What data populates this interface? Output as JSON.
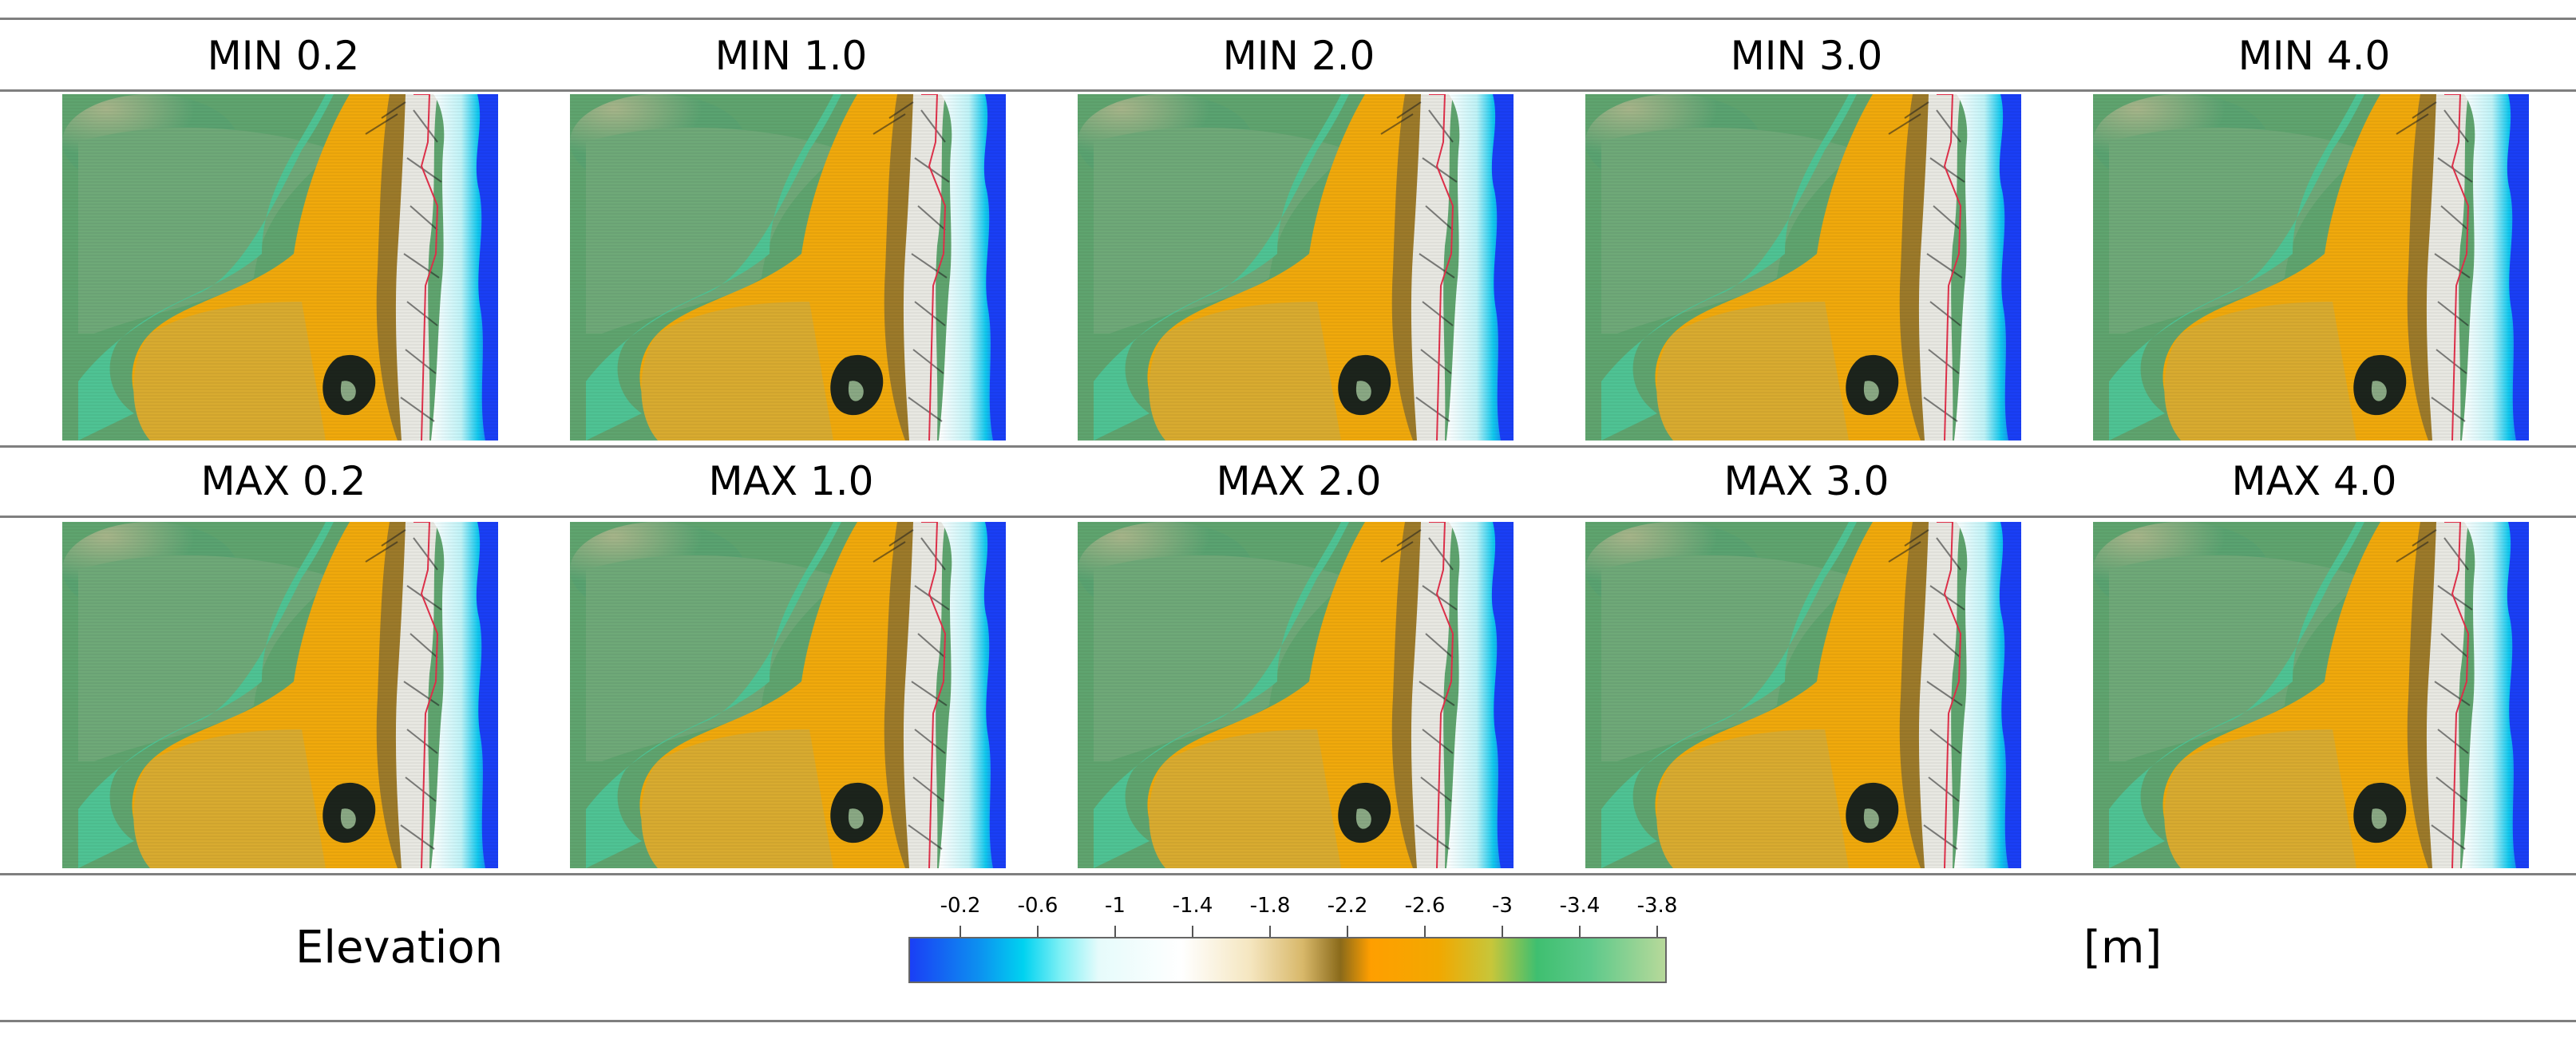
{
  "rows": [
    {
      "titles": [
        "MIN 0.2",
        "MIN 1.0",
        "MIN 2.0",
        "MIN 3.0",
        "MIN 4.0"
      ]
    },
    {
      "titles": [
        "MAX 0.2",
        "MAX 1.0",
        "MAX 2.0",
        "MAX 3.0",
        "MAX 4.0"
      ]
    }
  ],
  "legend": {
    "label": "Elevation",
    "unit": "[m]",
    "ticks": [
      "-0.2",
      "-0.6",
      "-1",
      "-1.4",
      "-1.8",
      "-2.2",
      "-2.6",
      "-3",
      "-3.4",
      "-3.8"
    ]
  },
  "colors": {
    "deep_blue": "#1a3ff5",
    "cyan": "#00d2f0",
    "sand": "#f2a800",
    "green": "#3fbf70",
    "boundary_red": "#e0304a"
  }
}
